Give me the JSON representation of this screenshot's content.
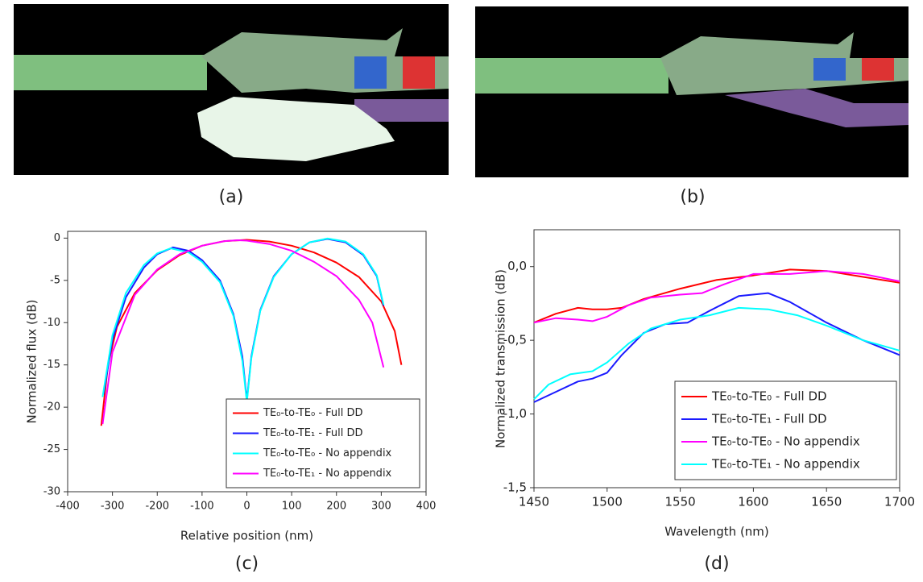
{
  "panels": [
    {
      "label": "(a)"
    },
    {
      "label": "(b)"
    }
  ],
  "chart_data": [
    {
      "type": "line",
      "caption": "(c)",
      "xlabel": "Relative position (nm)",
      "ylabel": "Normalized flux (dB)",
      "xlim": [
        -400,
        400
      ],
      "xticks": [
        -400,
        -300,
        -200,
        -100,
        0,
        100,
        200,
        300,
        400
      ],
      "ylim": [
        -30,
        0.8
      ],
      "yticks": [
        -30,
        -25,
        -20,
        -15,
        -10,
        -5,
        0
      ],
      "grid": false,
      "legend": "lower right",
      "series": [
        {
          "name": "TE₀-to-TE₀ - Full DD",
          "color": "#ff0000",
          "x": [
            -325,
            -310,
            -290,
            -250,
            -200,
            -150,
            -100,
            -50,
            0,
            50,
            100,
            150,
            200,
            250,
            300,
            330,
            345
          ],
          "values": [
            -22.2,
            -15,
            -10.5,
            -6.5,
            -3.8,
            -2,
            -0.9,
            -0.35,
            -0.2,
            -0.4,
            -0.9,
            -1.7,
            -2.9,
            -4.6,
            -7.5,
            -11,
            -15
          ]
        },
        {
          "name": "TE₀-to-TE₁ - Full DD",
          "color": "#1a1aff",
          "x": [
            -320,
            -300,
            -270,
            -230,
            -200,
            -165,
            -130,
            -100,
            -60,
            -30,
            -10,
            0,
            10,
            30,
            60,
            100,
            140,
            180,
            220,
            260,
            290,
            305
          ],
          "values": [
            -18.5,
            -12,
            -7,
            -3.5,
            -1.9,
            -1.1,
            -1.5,
            -2.6,
            -5,
            -9,
            -14,
            -19.2,
            -14,
            -8.5,
            -4.5,
            -1.9,
            -0.5,
            -0.1,
            -0.5,
            -2,
            -4.5,
            -8
          ]
        },
        {
          "name": "TE₀-to-TE₀ - No appendix",
          "color": "#00ffff",
          "x": [
            -322,
            -300,
            -270,
            -230,
            -200,
            -170,
            -130,
            -100,
            -60,
            -30,
            -10,
            0,
            10,
            30,
            60,
            100,
            140,
            180,
            220,
            260,
            290,
            305
          ],
          "values": [
            -18.8,
            -11.5,
            -6.5,
            -3.2,
            -1.8,
            -1.2,
            -1.7,
            -2.8,
            -5.2,
            -9.2,
            -14.5,
            -19.4,
            -14.2,
            -8.6,
            -4.6,
            -1.9,
            -0.5,
            -0.05,
            -0.4,
            -1.9,
            -4.4,
            -7.9
          ]
        },
        {
          "name": "TE₀-to-TE₁ - No appendix",
          "color": "#ff00ff",
          "x": [
            -322,
            -300,
            -250,
            -200,
            -150,
            -100,
            -50,
            -20,
            0,
            50,
            100,
            150,
            200,
            250,
            280,
            305
          ],
          "values": [
            -22,
            -13.5,
            -6.7,
            -3.7,
            -1.9,
            -0.9,
            -0.35,
            -0.25,
            -0.3,
            -0.7,
            -1.5,
            -2.8,
            -4.5,
            -7.3,
            -10,
            -15.3
          ]
        }
      ]
    },
    {
      "type": "line",
      "caption": "(d)",
      "xlabel": "Wavelength (nm)",
      "ylabel": "Normalized transmission (dB)",
      "xlim": [
        1450,
        1700
      ],
      "xticks": [
        1450,
        1500,
        1550,
        1600,
        1650,
        1700
      ],
      "ylim": [
        -1.5,
        0.25
      ],
      "yticks": [
        {
          "value": -1.5,
          "label": "-1,5"
        },
        {
          "value": -1.0,
          "label": "-1,0"
        },
        {
          "value": -0.5,
          "label": "-0,5"
        },
        {
          "value": 0.0,
          "label": "0,0"
        }
      ],
      "grid": false,
      "legend": "lower left",
      "series": [
        {
          "name": "TE₀-to-TE₀ - Full DD",
          "color": "#ff0000",
          "x": [
            1450,
            1465,
            1480,
            1490,
            1500,
            1510,
            1525,
            1550,
            1575,
            1600,
            1625,
            1650,
            1675,
            1700
          ],
          "values": [
            -0.38,
            -0.32,
            -0.28,
            -0.29,
            -0.29,
            -0.28,
            -0.22,
            -0.15,
            -0.09,
            -0.06,
            -0.02,
            -0.03,
            -0.07,
            -0.11
          ]
        },
        {
          "name": "TE₀-to-TE₁ - Full DD",
          "color": "#1a1aff",
          "x": [
            1450,
            1465,
            1480,
            1490,
            1500,
            1510,
            1525,
            1540,
            1555,
            1570,
            1590,
            1610,
            1625,
            1650,
            1675,
            1700
          ],
          "values": [
            -0.92,
            -0.85,
            -0.78,
            -0.76,
            -0.72,
            -0.6,
            -0.45,
            -0.39,
            -0.38,
            -0.3,
            -0.2,
            -0.18,
            -0.24,
            -0.38,
            -0.5,
            -0.6
          ]
        },
        {
          "name": "TE₀-to-TE₀ - No appendix",
          "color": "#ff00ff",
          "x": [
            1450,
            1465,
            1480,
            1490,
            1500,
            1515,
            1530,
            1550,
            1565,
            1580,
            1600,
            1625,
            1650,
            1675,
            1700
          ],
          "values": [
            -0.38,
            -0.35,
            -0.36,
            -0.37,
            -0.34,
            -0.26,
            -0.21,
            -0.19,
            -0.18,
            -0.12,
            -0.05,
            -0.05,
            -0.03,
            -0.05,
            -0.1
          ]
        },
        {
          "name": "TE₀-to-TE₁ - No appendix",
          "color": "#00ffff",
          "x": [
            1450,
            1460,
            1475,
            1490,
            1500,
            1515,
            1530,
            1550,
            1570,
            1590,
            1610,
            1630,
            1650,
            1675,
            1700
          ],
          "values": [
            -0.9,
            -0.8,
            -0.73,
            -0.71,
            -0.65,
            -0.52,
            -0.42,
            -0.36,
            -0.33,
            -0.28,
            -0.29,
            -0.33,
            -0.4,
            -0.5,
            -0.57
          ]
        }
      ]
    }
  ]
}
